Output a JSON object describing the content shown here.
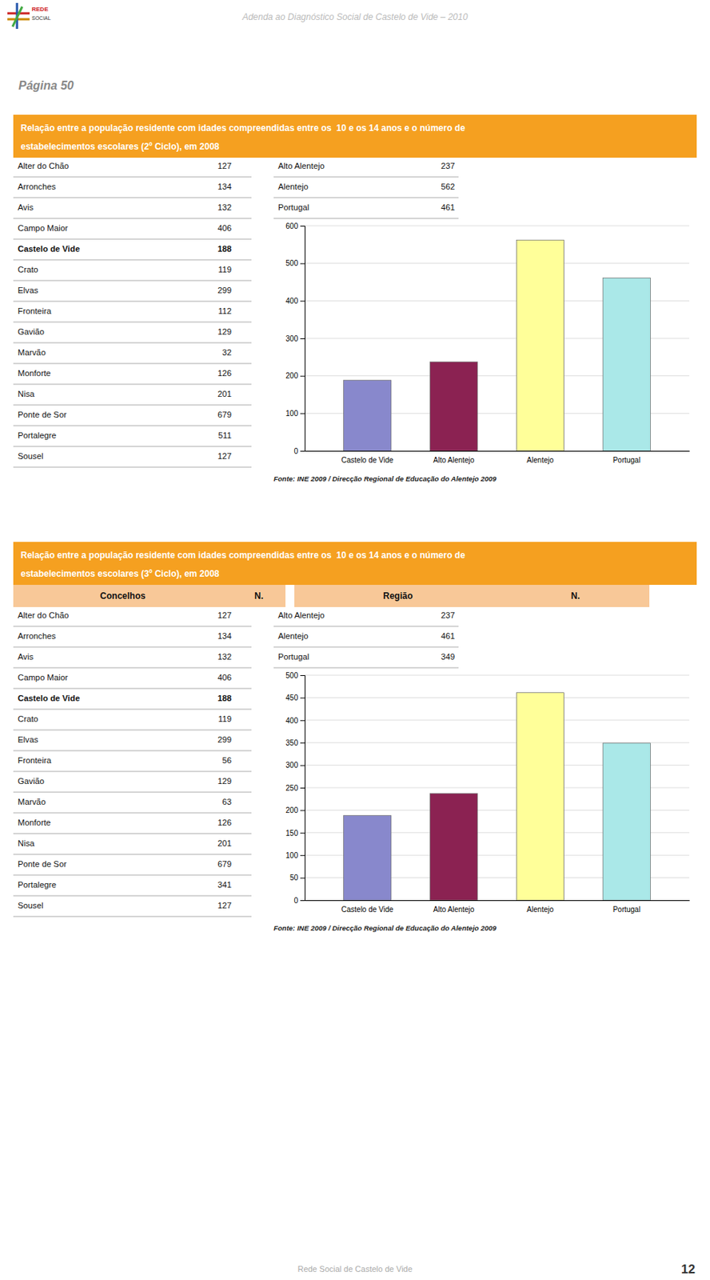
{
  "page_title": "Adenda ao Diagnóstico Social de Castelo de Vide – 2010",
  "page_label": "Página 50",
  "logo_text": [
    "REDE",
    "SOCIAL"
  ],
  "footer_text": "Rede Social de Castelo de Vide",
  "page_number": "12",
  "sections": [
    {
      "title_lines": [
        "Relação entre a população residente com idades compreendidas entre os  10 e os 14 anos e o número de",
        "estabelecimentos escolares (2º Ciclo), em 2008"
      ],
      "concelhos": [
        "Alter do Chão",
        "Arronches",
        "Avis",
        "Campo Maior",
        "Castelo de Vide",
        "Crato",
        "Elvas",
        "Fronteira",
        "Gavião",
        "Marvão",
        "Monforte",
        "Nisa",
        "Ponte de Sor",
        "Portalegre",
        "Sousel"
      ],
      "concelhos_values": [
        127,
        134,
        132,
        406,
        188,
        119,
        299,
        112,
        129,
        32,
        126,
        201,
        679,
        511,
        127
      ],
      "bold_concelho": "Castelo de Vide",
      "regioes": [
        "Alto Alentejo",
        "Alentejo",
        "Portugal"
      ],
      "regioes_values": [
        237,
        562,
        461
      ],
      "source": "Fonte: INE 2009 / Direcção Regional de Educação do Alentejo 2009"
    },
    {
      "title_lines": [
        "Relação entre a população residente com idades compreendidas entre os  10 e os 14 anos e o número de",
        "estabelecimentos escolares (3º Ciclo), em 2008"
      ],
      "col_headers": [
        "Concelhos",
        "N.",
        "Região",
        "N."
      ],
      "concelhos": [
        "Alter do Chão",
        "Arronches",
        "Avis",
        "Campo Maior",
        "Castelo de Vide",
        "Crato",
        "Elvas",
        "Fronteira",
        "Gavião",
        "Marvão",
        "Monforte",
        "Nisa",
        "Ponte de Sor",
        "Portalegre",
        "Sousel"
      ],
      "concelhos_values": [
        127,
        134,
        132,
        406,
        188,
        119,
        299,
        56,
        129,
        63,
        126,
        201,
        679,
        341,
        127
      ],
      "bold_concelho": "Castelo de Vide",
      "regioes": [
        "Alto Alentejo",
        "Alentejo",
        "Portugal"
      ],
      "regioes_values": [
        237,
        461,
        349
      ],
      "source": "Fonte: INE 2009 / Direcção Regional de Educação do Alentejo 2009"
    }
  ],
  "chart_data": [
    {
      "type": "bar",
      "categories": [
        "Castelo de Vide",
        "Alto Alentejo",
        "Alentejo",
        "Portugal"
      ],
      "values": [
        188,
        237,
        562,
        461
      ],
      "colors": [
        "#8888cc",
        "#8b2252",
        "#ffff99",
        "#aae8e8"
      ],
      "ylim": [
        0,
        600
      ],
      "yticks": [
        0,
        100,
        200,
        300,
        400,
        500,
        600
      ],
      "grid": true
    },
    {
      "type": "bar",
      "categories": [
        "Castelo de Vide",
        "Alto Alentejo",
        "Alentejo",
        "Portugal"
      ],
      "values": [
        188,
        237,
        461,
        349
      ],
      "colors": [
        "#8888cc",
        "#8b2252",
        "#ffff99",
        "#aae8e8"
      ],
      "ylim": [
        0,
        500
      ],
      "yticks": [
        0,
        50,
        100,
        150,
        200,
        250,
        300,
        350,
        400,
        450,
        500
      ],
      "grid": true
    }
  ]
}
